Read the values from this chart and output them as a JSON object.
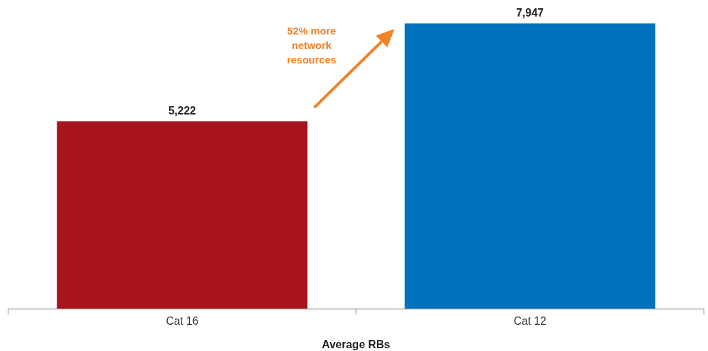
{
  "chart_data": {
    "type": "bar",
    "xlabel": "Average RBs",
    "categories": [
      "Cat 16",
      "Cat 12"
    ],
    "values": [
      5222,
      7947
    ],
    "value_labels": [
      "5,222",
      "7,947"
    ],
    "colors": [
      "#a8141c",
      "#0071bc"
    ],
    "tick_labels": "x",
    "annotations": [
      "52% more network resources"
    ]
  }
}
